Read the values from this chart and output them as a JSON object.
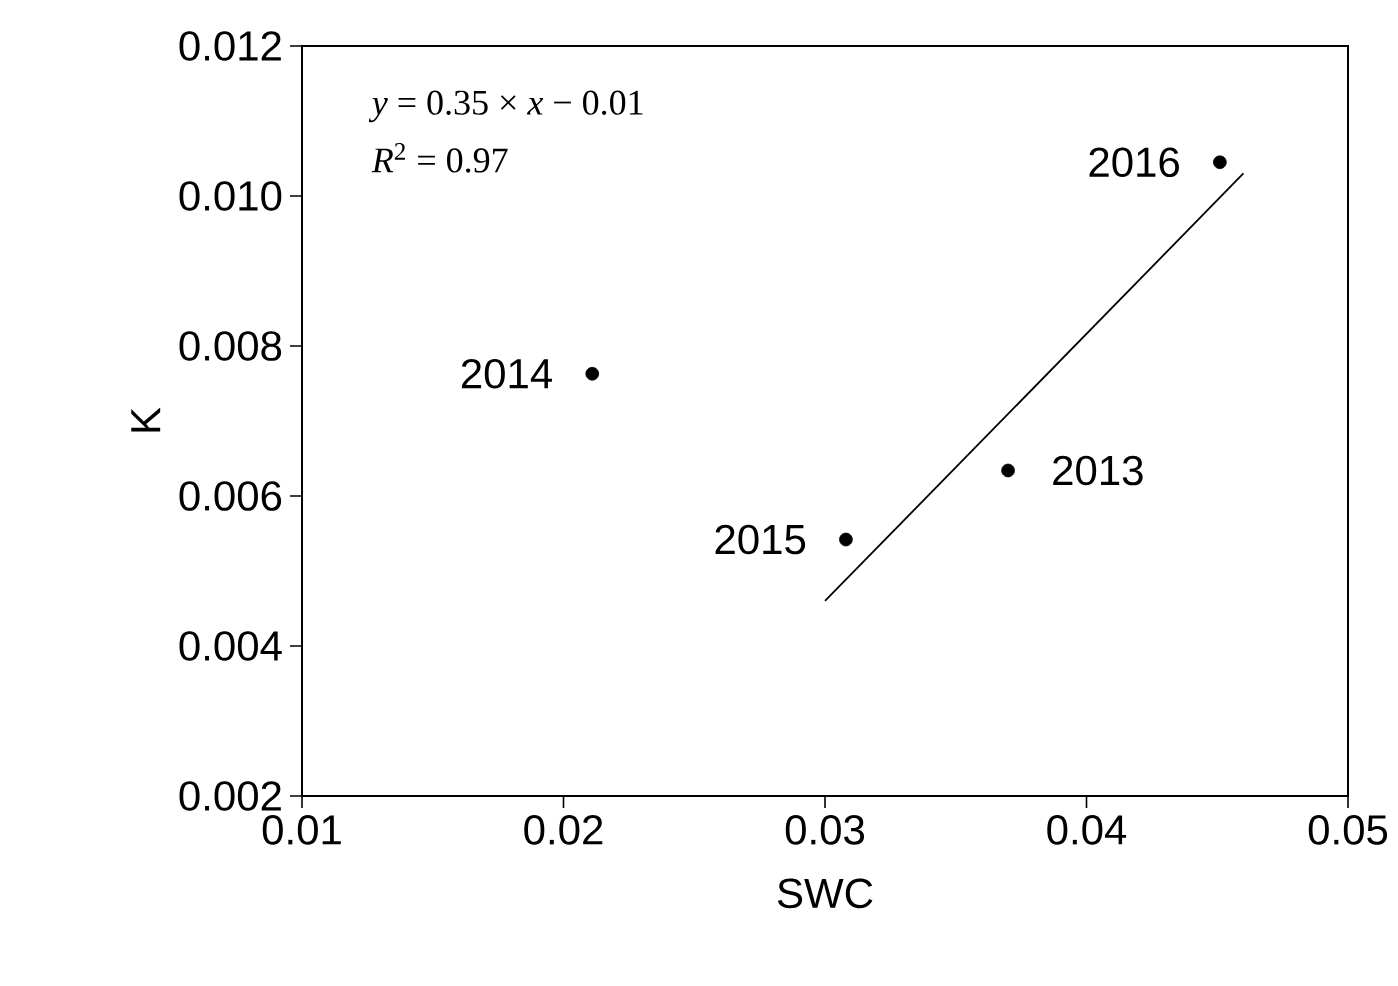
{
  "chart_data": {
    "type": "scatter",
    "xlabel": "SWC",
    "ylabel": "K",
    "xlim": [
      0.01,
      0.05
    ],
    "xticks": [
      0.01,
      0.02,
      0.03,
      0.04,
      0.05
    ],
    "ylim": [
      0.002,
      0.012
    ],
    "yticks": [
      {
        "value": 0.002,
        "label": "0.002"
      },
      {
        "value": 0.004,
        "label": "0.004"
      },
      {
        "value": 0.006,
        "label": "0.006"
      },
      {
        "value": 0.008,
        "label": "0.008"
      },
      {
        "value": 0.01,
        "label": "0.010"
      },
      {
        "value": 0.012,
        "label": "0.012"
      }
    ],
    "grid": false,
    "series": [
      {
        "color": "#000000",
        "marker": "circle",
        "x": [
          0.037,
          0.0211,
          0.0308,
          0.0451
        ],
        "values": [
          0.00634,
          0.00763,
          0.00542,
          0.01045
        ]
      },
      {
        "type": "line",
        "color": "#000000",
        "marker": "none",
        "line_style": "solid",
        "x": [
          0.03,
          0.046
        ],
        "values": [
          0.0046,
          0.0103
        ]
      }
    ],
    "annotations": [
      {
        "text": "2013",
        "x": 0.037,
        "y": 0.00634
      },
      {
        "text": "2014",
        "x": 0.0211,
        "y": 0.00763
      },
      {
        "text": "2015",
        "x": 0.0308,
        "y": 0.00542
      },
      {
        "text": "2016",
        "x": 0.0451,
        "y": 0.01045
      },
      "*y* = 0.35 × *x* − 0.01",
      "*R*$^{2}$ = 0.97"
    ]
  }
}
